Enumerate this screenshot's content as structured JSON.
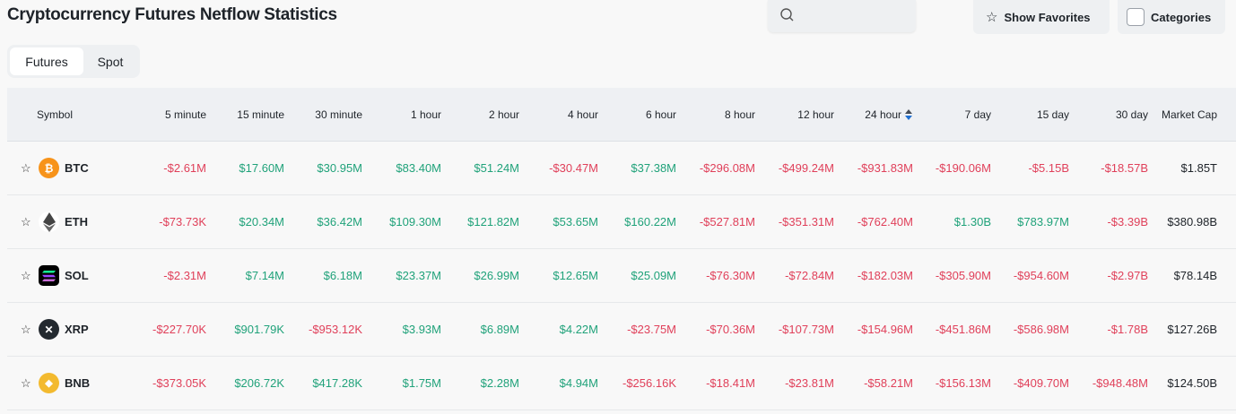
{
  "title": "Cryptocurrency Futures Netflow Statistics",
  "search": {
    "placeholder": ""
  },
  "buttons": {
    "show_favorites": "Show Favorites",
    "categories": "Categories"
  },
  "tabs": [
    {
      "label": "Futures",
      "active": true
    },
    {
      "label": "Spot",
      "active": false
    }
  ],
  "colors": {
    "negative": "#e0405a",
    "positive": "#20a27a",
    "sort_active": "#1f6fd1"
  },
  "table": {
    "headers": [
      "Symbol",
      "5 minute",
      "15 minute",
      "30 minute",
      "1 hour",
      "2 hour",
      "4 hour",
      "6 hour",
      "8 hour",
      "12 hour",
      "24 hour",
      "7 day",
      "15 day",
      "30 day",
      "Market Cap"
    ],
    "sorted_column": "24 hour",
    "rows": [
      {
        "symbol": "BTC",
        "icon": "bitcoin-icon",
        "values": [
          "-$2.61M",
          "$17.60M",
          "$30.95M",
          "$83.40M",
          "$51.24M",
          "-$30.47M",
          "$37.38M",
          "-$296.08M",
          "-$499.24M",
          "-$931.83M",
          "-$190.06M",
          "-$5.15B",
          "-$18.57B"
        ],
        "market_cap": "$1.85T"
      },
      {
        "symbol": "ETH",
        "icon": "ethereum-icon",
        "values": [
          "-$73.73K",
          "$20.34M",
          "$36.42M",
          "$109.30M",
          "$121.82M",
          "$53.65M",
          "$160.22M",
          "-$527.81M",
          "-$351.31M",
          "-$762.40M",
          "$1.30B",
          "$783.97M",
          "-$3.39B"
        ],
        "market_cap": "$380.98B"
      },
      {
        "symbol": "SOL",
        "icon": "solana-icon",
        "values": [
          "-$2.31M",
          "$7.14M",
          "$6.18M",
          "$23.37M",
          "$26.99M",
          "$12.65M",
          "$25.09M",
          "-$76.30M",
          "-$72.84M",
          "-$182.03M",
          "-$305.90M",
          "-$954.60M",
          "-$2.97B"
        ],
        "market_cap": "$78.14B"
      },
      {
        "symbol": "XRP",
        "icon": "xrp-icon",
        "values": [
          "-$227.70K",
          "$901.79K",
          "-$953.12K",
          "$3.93M",
          "$6.89M",
          "$4.22M",
          "-$23.75M",
          "-$70.36M",
          "-$107.73M",
          "-$154.96M",
          "-$451.86M",
          "-$586.98M",
          "-$1.78B"
        ],
        "market_cap": "$127.26B"
      },
      {
        "symbol": "BNB",
        "icon": "bnb-icon",
        "values": [
          "-$373.05K",
          "$206.72K",
          "$417.28K",
          "$1.75M",
          "$2.28M",
          "$4.94M",
          "-$256.16K",
          "-$18.41M",
          "-$23.81M",
          "-$58.21M",
          "-$156.13M",
          "-$409.70M",
          "-$948.48M"
        ],
        "market_cap": "$124.50B"
      }
    ]
  }
}
